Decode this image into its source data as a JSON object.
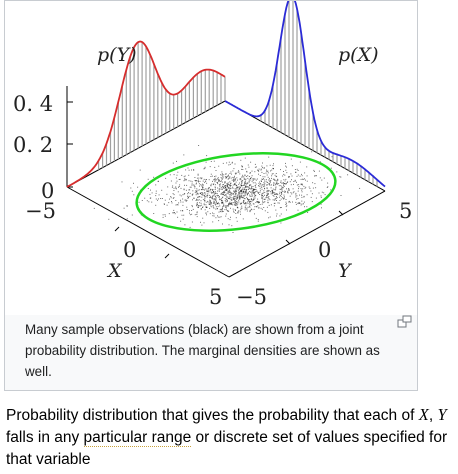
{
  "figure": {
    "labels": {
      "p_y": "p(Y)",
      "p_x": "p(X)",
      "tick_04": "0. 4",
      "tick_02": "0. 2",
      "tick_0": "0",
      "left_axis_min": "−5",
      "x_axis_zero": "0",
      "x_axis_name": "X",
      "x_axis_max": "5",
      "y_axis_min": "−5",
      "y_axis_zero": "0",
      "y_axis_name": "Y",
      "right_axis_max": "5"
    },
    "colors": {
      "p_y_curve": "#d62d2d",
      "p_x_curve": "#2b2bd6",
      "ellipse": "#22d622",
      "samples": "#000000",
      "stems": "#a0a0a0"
    },
    "caption": "Many sample observations (black) are shown from a joint probability distribution. The marginal densities are shown as well.",
    "icon": "enlarge-icon"
  },
  "description": {
    "before_x": "Probability distribution that gives the probability that each of ",
    "var_x": "X",
    "comma": ", ",
    "var_y": "Y",
    "mid": " falls in any ",
    "range_term": "particular range",
    "after": " or discrete set of values specified for that variable"
  }
}
